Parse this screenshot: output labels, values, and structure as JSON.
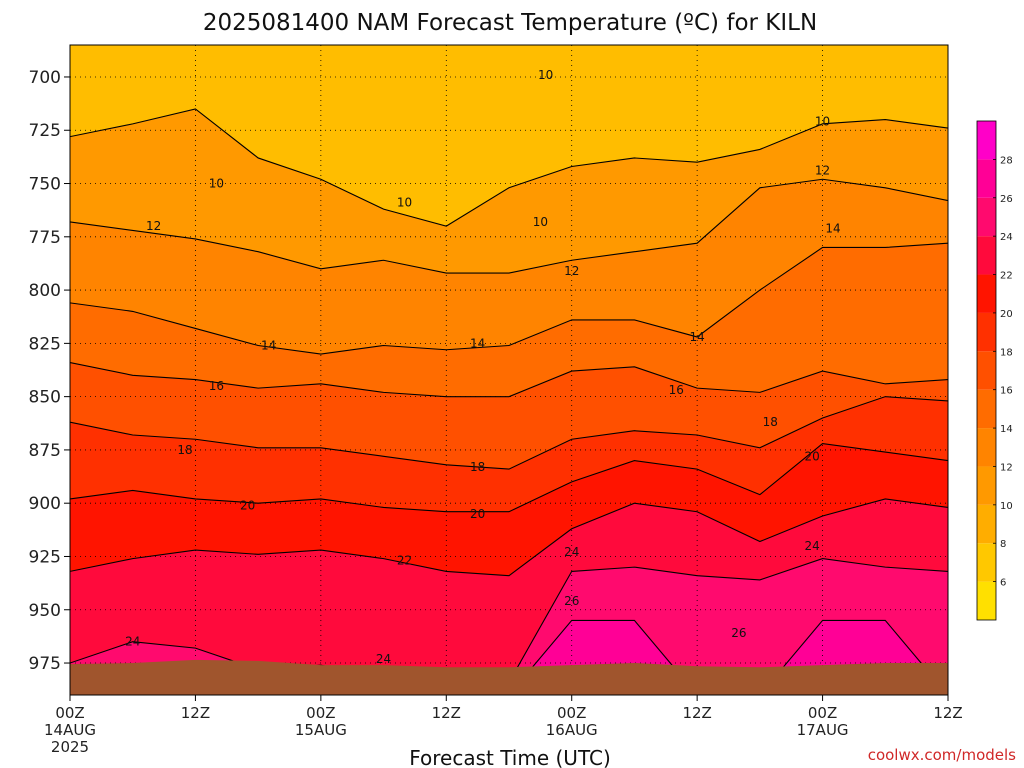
{
  "chart_data": {
    "type": "heatmap",
    "title": "2025081400 NAM Forecast Temperature (ºC) for KILN",
    "xlabel": "Forecast Time (UTC)",
    "credit": "coolwx.com/models",
    "y_axis": {
      "ticks": [
        700,
        725,
        750,
        775,
        800,
        825,
        850,
        875,
        900,
        925,
        950,
        975
      ],
      "range": [
        685,
        990
      ],
      "inverted": true,
      "grid": "dotted"
    },
    "x_axis": {
      "range_hours": [
        0,
        84
      ],
      "ticks": [
        {
          "hour": 0,
          "label": "00Z",
          "date": "14AUG",
          "year": "2025"
        },
        {
          "hour": 12,
          "label": "12Z"
        },
        {
          "hour": 24,
          "label": "00Z",
          "date": "15AUG"
        },
        {
          "hour": 36,
          "label": "12Z"
        },
        {
          "hour": 48,
          "label": "00Z",
          "date": "16AUG"
        },
        {
          "hour": 60,
          "label": "12Z"
        },
        {
          "hour": 72,
          "label": "00Z",
          "date": "17AUG"
        },
        {
          "hour": 84,
          "label": "12Z"
        }
      ],
      "grid": "dotted"
    },
    "colorbar": {
      "levels": [
        4,
        6,
        8,
        10,
        12,
        14,
        16,
        18,
        20,
        22,
        24,
        26,
        28,
        30
      ],
      "labels": [
        6,
        8,
        10,
        12,
        14,
        16,
        18,
        20,
        22,
        24,
        26,
        28
      ],
      "colors": [
        "#ffe000",
        "#ffc800",
        "#ffad00",
        "#ff9900",
        "#ff8400",
        "#ff6c00",
        "#ff5000",
        "#ff3000",
        "#ff1400",
        "#ff0a3c",
        "#ff0a6e",
        "#ff0096",
        "#ff00c8"
      ]
    },
    "ground_color": "#a0552d",
    "x_hours": [
      0,
      6,
      12,
      18,
      24,
      30,
      36,
      42,
      48,
      54,
      60,
      66,
      72,
      78,
      84
    ],
    "contours": [
      {
        "level": 10,
        "pressure": [
          728,
          722,
          715,
          738,
          748,
          762,
          770,
          752,
          742,
          738,
          740,
          734,
          722,
          720,
          724
        ]
      },
      {
        "level": 12,
        "pressure": [
          768,
          772,
          776,
          782,
          790,
          786,
          792,
          792,
          786,
          782,
          778,
          752,
          748,
          752,
          758
        ]
      },
      {
        "level": 14,
        "pressure": [
          806,
          810,
          818,
          826,
          830,
          826,
          828,
          826,
          814,
          814,
          822,
          800,
          780,
          780,
          778
        ]
      },
      {
        "level": 16,
        "pressure": [
          834,
          840,
          842,
          846,
          844,
          848,
          850,
          850,
          838,
          836,
          846,
          848,
          838,
          844,
          842
        ]
      },
      {
        "level": 18,
        "pressure": [
          862,
          868,
          870,
          874,
          874,
          878,
          882,
          884,
          870,
          866,
          868,
          874,
          860,
          850,
          852
        ]
      },
      {
        "level": 20,
        "pressure": [
          898,
          894,
          898,
          900,
          898,
          902,
          904,
          904,
          890,
          880,
          884,
          896,
          872,
          876,
          880
        ]
      },
      {
        "level": 22,
        "pressure": [
          932,
          926,
          922,
          924,
          922,
          926,
          932,
          934,
          912,
          900,
          904,
          918,
          906,
          898,
          902
        ]
      },
      {
        "level": 24,
        "pressure": [
          975,
          965,
          968,
          978,
          976,
          982,
          990,
          984,
          932,
          930,
          934,
          936,
          926,
          930,
          932
        ]
      },
      {
        "level": 26,
        "pressure": [
          990,
          990,
          990,
          990,
          990,
          990,
          990,
          990,
          955,
          955,
          990,
          990,
          955,
          955,
          990
        ]
      }
    ],
    "contour_labels": [
      {
        "text": "10",
        "hour": 14,
        "pressure": 750
      },
      {
        "text": "10",
        "hour": 32,
        "pressure": 759
      },
      {
        "text": "10",
        "hour": 45,
        "pressure": 768
      },
      {
        "text": "10",
        "hour": 45.5,
        "pressure": 699
      },
      {
        "text": "10",
        "hour": 72,
        "pressure": 721
      },
      {
        "text": "12",
        "hour": 8,
        "pressure": 770
      },
      {
        "text": "12",
        "hour": 48,
        "pressure": 791
      },
      {
        "text": "12",
        "hour": 72,
        "pressure": 744
      },
      {
        "text": "14",
        "hour": 19,
        "pressure": 826
      },
      {
        "text": "14",
        "hour": 39,
        "pressure": 825
      },
      {
        "text": "14",
        "hour": 60,
        "pressure": 822
      },
      {
        "text": "14",
        "hour": 73,
        "pressure": 771
      },
      {
        "text": "16",
        "hour": 14,
        "pressure": 845
      },
      {
        "text": "16",
        "hour": 58,
        "pressure": 847
      },
      {
        "text": "18",
        "hour": 11,
        "pressure": 875
      },
      {
        "text": "18",
        "hour": 39,
        "pressure": 883
      },
      {
        "text": "18",
        "hour": 67,
        "pressure": 862
      },
      {
        "text": "20",
        "hour": 17,
        "pressure": 901
      },
      {
        "text": "20",
        "hour": 39,
        "pressure": 905
      },
      {
        "text": "20",
        "hour": 71,
        "pressure": 878
      },
      {
        "text": "22",
        "hour": 32,
        "pressure": 927
      },
      {
        "text": "24",
        "hour": 6,
        "pressure": 965
      },
      {
        "text": "24",
        "hour": 48,
        "pressure": 923
      },
      {
        "text": "24",
        "hour": 71,
        "pressure": 920
      },
      {
        "text": "24",
        "hour": 30,
        "pressure": 973
      },
      {
        "text": "26",
        "hour": 48,
        "pressure": 946
      },
      {
        "text": "26",
        "hour": 64,
        "pressure": 961
      }
    ]
  }
}
